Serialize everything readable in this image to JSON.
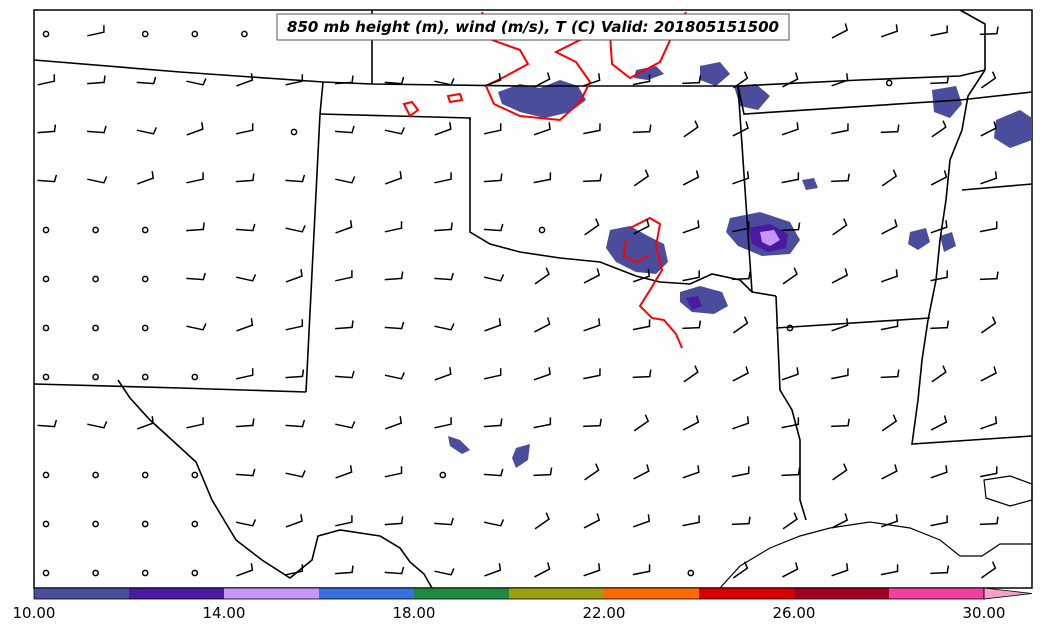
{
  "title": "850 mb height (m), wind (m/s), T (C) Valid: 201805151500",
  "colorbar": {
    "min": 10,
    "max": 30,
    "over_color": "#f8a0c8",
    "bins": [
      {
        "from": 10,
        "to": 12,
        "color": "#4a4c9c"
      },
      {
        "from": 12,
        "to": 14,
        "color": "#4a1aa0"
      },
      {
        "from": 14,
        "to": 16,
        "color": "#c896f8"
      },
      {
        "from": 16,
        "to": 18,
        "color": "#3870e0"
      },
      {
        "from": 18,
        "to": 20,
        "color": "#208840"
      },
      {
        "from": 20,
        "to": 22,
        "color": "#9ca010"
      },
      {
        "from": 22,
        "to": 24,
        "color": "#ff6a00"
      },
      {
        "from": 24,
        "to": 26,
        "color": "#d80000"
      },
      {
        "from": 26,
        "to": 28,
        "color": "#a00020"
      },
      {
        "from": 28,
        "to": 30,
        "color": "#f040a0"
      }
    ],
    "tick_labels": [
      "10.00",
      "14.00",
      "18.00",
      "22.00",
      "26.00",
      "30.00"
    ]
  },
  "contour_color": "#ff0000",
  "boundary_color": "#000000",
  "barb_color": "#000000"
}
